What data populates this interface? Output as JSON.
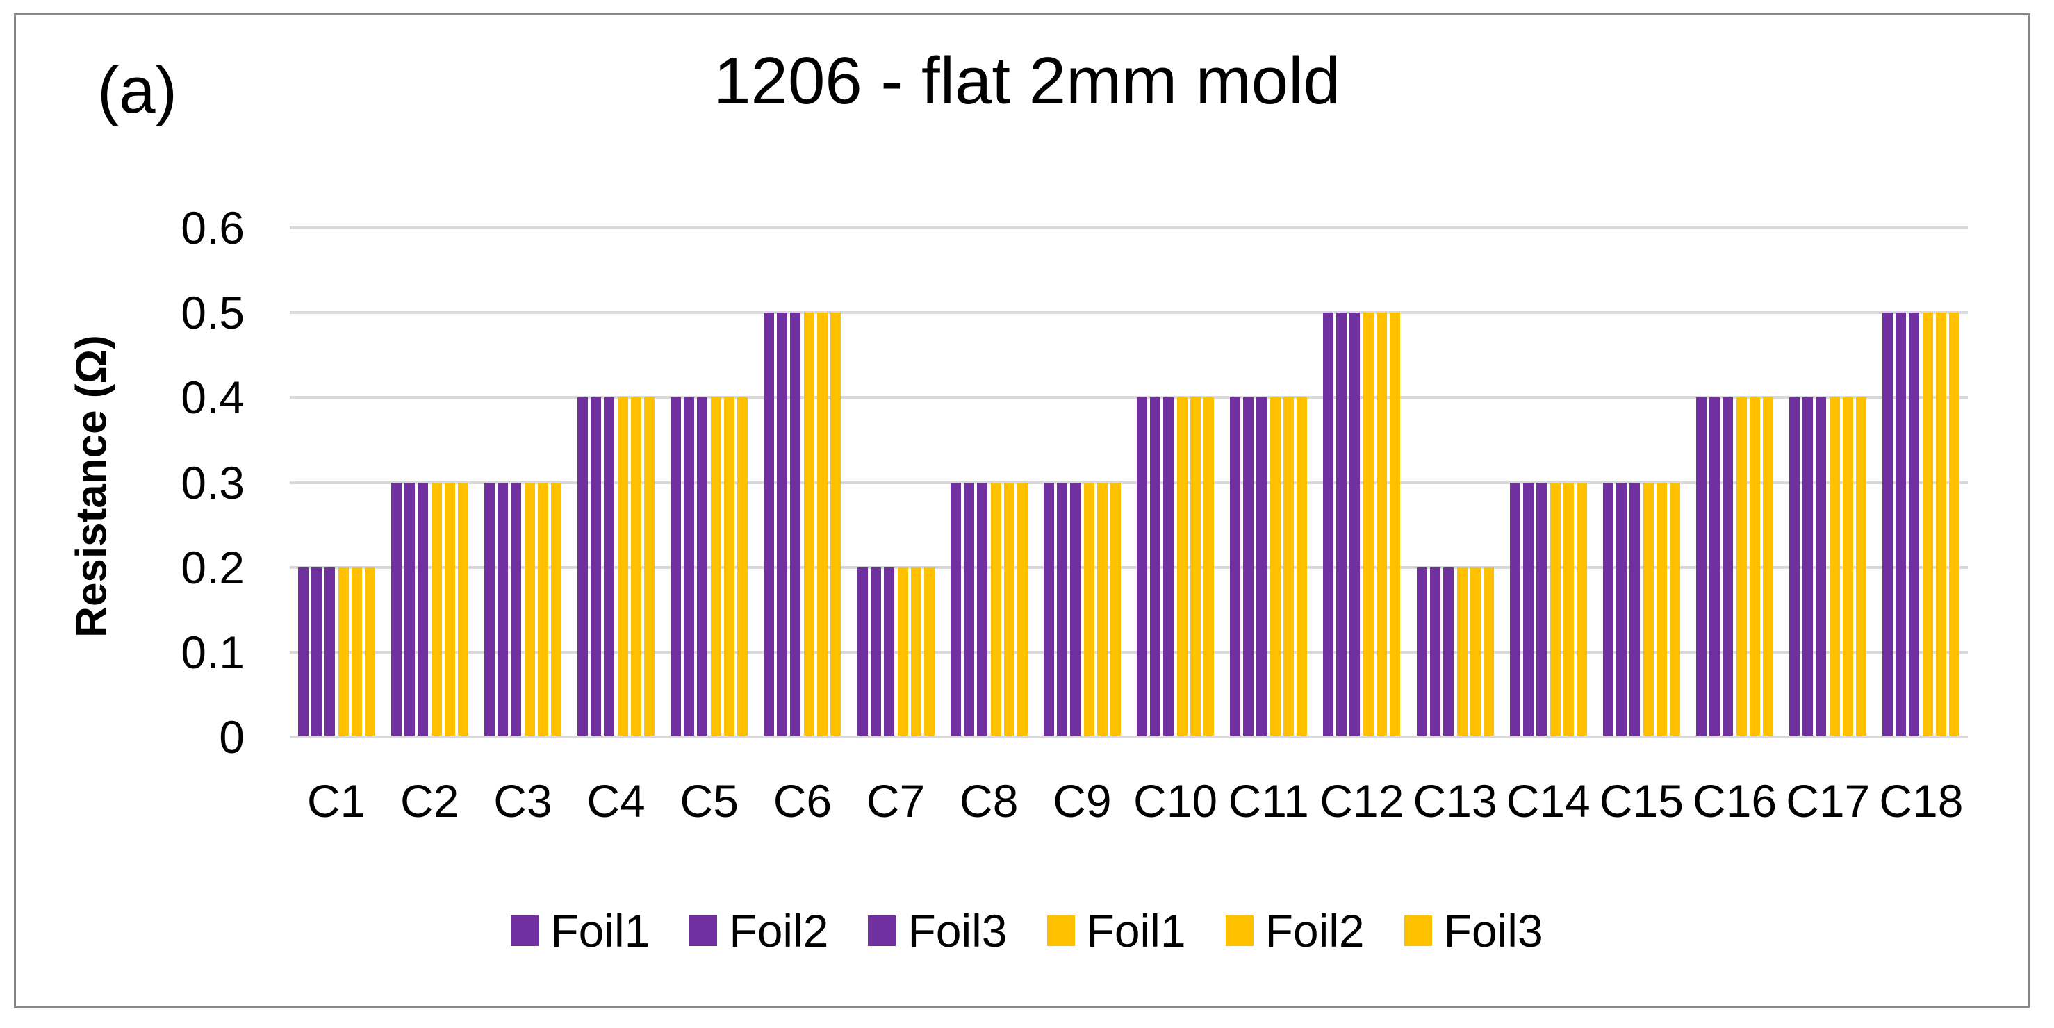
{
  "figure_label": "(a)",
  "colors": {
    "purple_series": "#7030A0",
    "yellow_series": "#FFC000",
    "gridline": "#D9D9D9",
    "frame_border": "#878787",
    "text": "#000000"
  },
  "chart_data": {
    "type": "bar",
    "title": "1206 - flat 2mm mold",
    "xlabel": "",
    "ylabel": "Resistance (Ω)",
    "ylim": [
      0,
      0.6
    ],
    "ytick_values": [
      0,
      0.1,
      0.2,
      0.3,
      0.4,
      0.5,
      0.6
    ],
    "ytick_labels": [
      "0",
      "0.1",
      "0.2",
      "0.3",
      "0.4",
      "0.5",
      "0.6"
    ],
    "grid": true,
    "legend_position": "bottom",
    "categories": [
      "C1",
      "C2",
      "C3",
      "C4",
      "C5",
      "C6",
      "C7",
      "C8",
      "C9",
      "C10",
      "C11",
      "C12",
      "C13",
      "C14",
      "C15",
      "C16",
      "C17",
      "C18"
    ],
    "series": [
      {
        "name": "Foil1",
        "color": "#7030A0",
        "values": [
          0.2,
          0.3,
          0.3,
          0.4,
          0.4,
          0.5,
          0.2,
          0.3,
          0.3,
          0.4,
          0.4,
          0.5,
          0.2,
          0.3,
          0.3,
          0.4,
          0.4,
          0.5
        ]
      },
      {
        "name": "Foil2",
        "color": "#7030A0",
        "values": [
          0.2,
          0.3,
          0.3,
          0.4,
          0.4,
          0.5,
          0.2,
          0.3,
          0.3,
          0.4,
          0.4,
          0.5,
          0.2,
          0.3,
          0.3,
          0.4,
          0.4,
          0.5
        ]
      },
      {
        "name": "Foil3",
        "color": "#7030A0",
        "values": [
          0.2,
          0.3,
          0.3,
          0.4,
          0.4,
          0.5,
          0.2,
          0.3,
          0.3,
          0.4,
          0.4,
          0.5,
          0.2,
          0.3,
          0.3,
          0.4,
          0.4,
          0.5
        ]
      },
      {
        "name": "Foil1",
        "color": "#FFC000",
        "values": [
          0.2,
          0.3,
          0.3,
          0.4,
          0.4,
          0.5,
          0.2,
          0.3,
          0.3,
          0.4,
          0.4,
          0.5,
          0.2,
          0.3,
          0.3,
          0.4,
          0.4,
          0.5
        ]
      },
      {
        "name": "Foil2",
        "color": "#FFC000",
        "values": [
          0.2,
          0.3,
          0.3,
          0.4,
          0.4,
          0.5,
          0.2,
          0.3,
          0.3,
          0.4,
          0.4,
          0.5,
          0.2,
          0.3,
          0.3,
          0.4,
          0.4,
          0.5
        ]
      },
      {
        "name": "Foil3",
        "color": "#FFC000",
        "values": [
          0.2,
          0.3,
          0.3,
          0.4,
          0.4,
          0.5,
          0.2,
          0.3,
          0.3,
          0.4,
          0.4,
          0.5,
          0.2,
          0.3,
          0.3,
          0.4,
          0.4,
          0.5
        ]
      }
    ]
  }
}
